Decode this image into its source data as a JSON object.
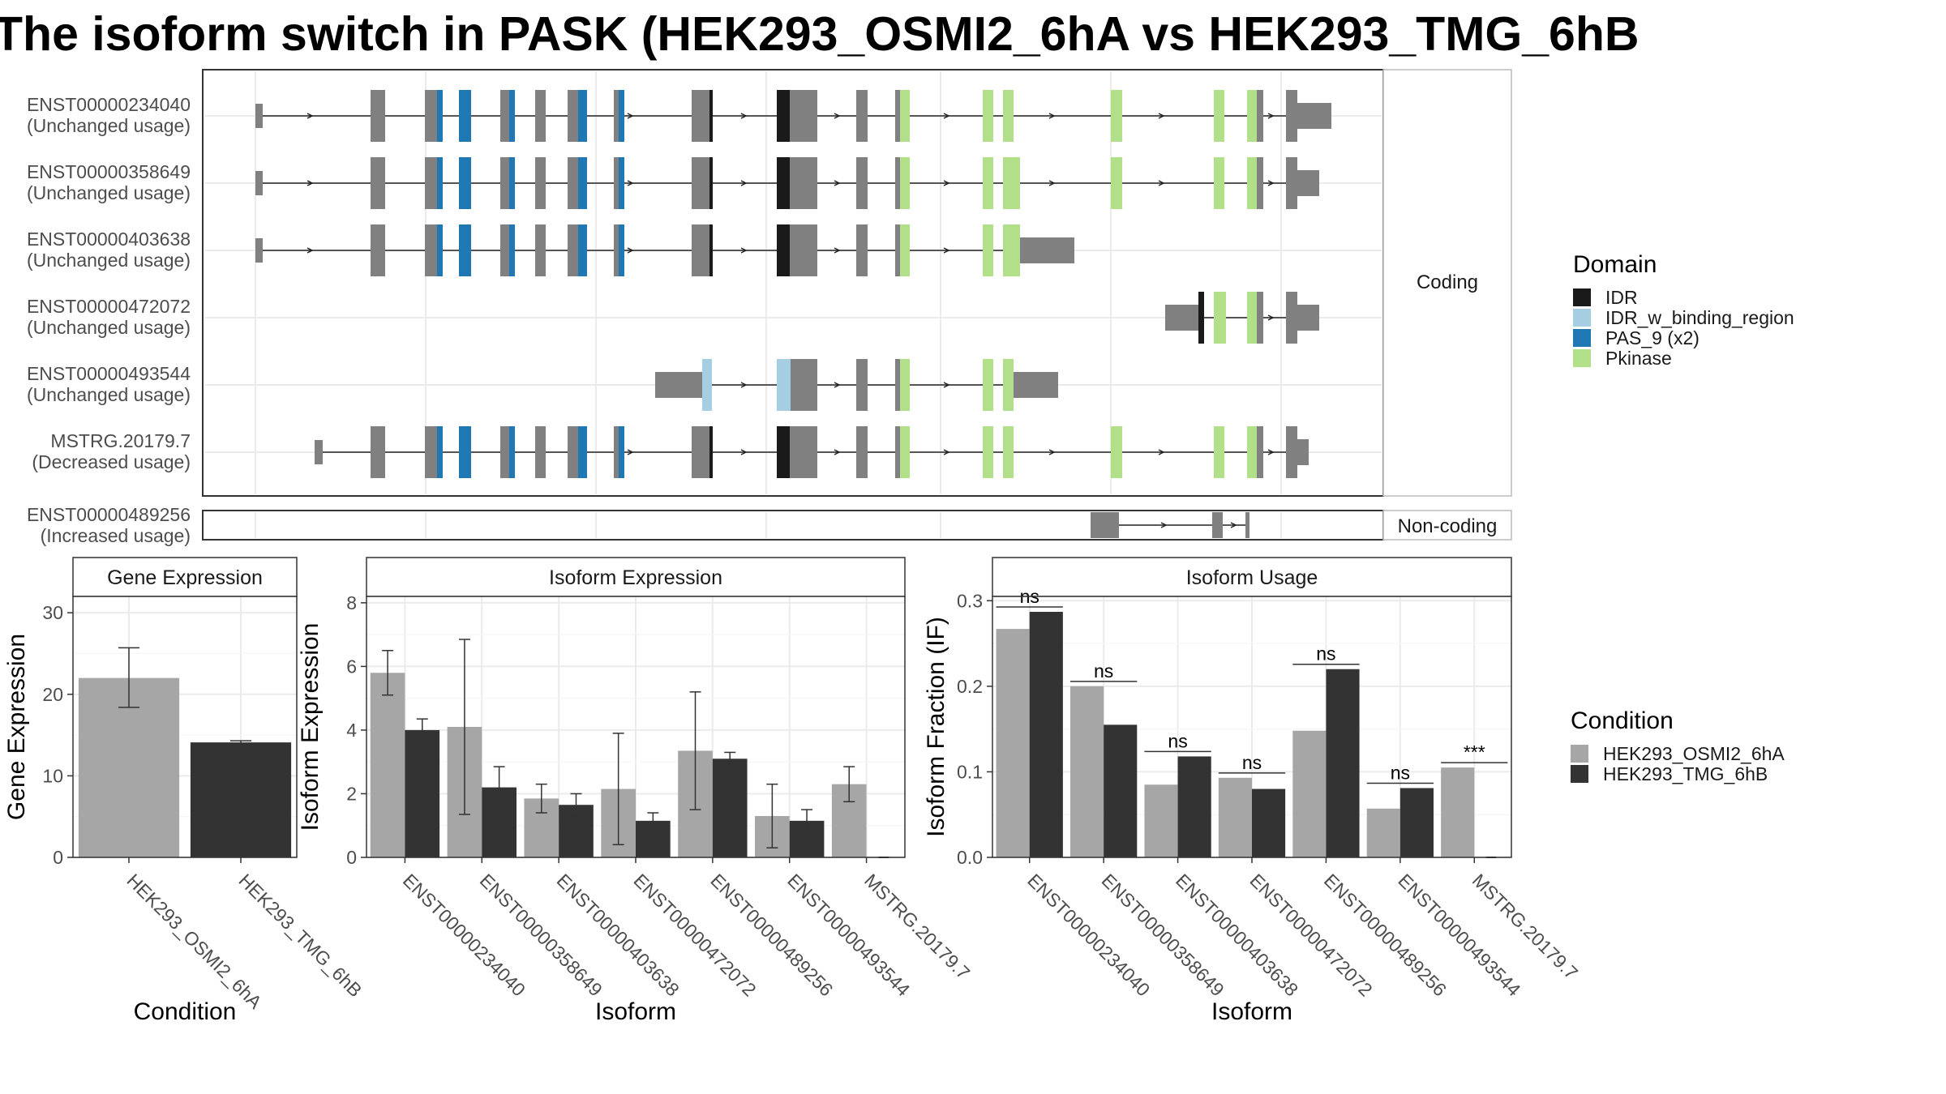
{
  "title": "The isoform switch in PASK (HEK293_OSMI2_6hA vs HEK293_TMG_6hB",
  "colors": {
    "exon": "#808080",
    "IDR": "#1a1a1a",
    "IDR_w_binding_region": "#a6cee3",
    "PAS_9": "#1f78b4",
    "Pkinase": "#b2df8a",
    "cond1": "#a6a6a6",
    "cond2": "#333333"
  },
  "transcripts": {
    "coding_strip": "Coding",
    "noncoding_strip": "Non-coding",
    "coding": [
      {
        "id": "ENST00000234040",
        "usage": "(Unchanged usage)"
      },
      {
        "id": "ENST00000358649",
        "usage": "(Unchanged usage)"
      },
      {
        "id": "ENST00000403638",
        "usage": "(Unchanged usage)"
      },
      {
        "id": "ENST00000472072",
        "usage": "(Unchanged usage)"
      },
      {
        "id": "ENST00000493544",
        "usage": "(Unchanged usage)"
      },
      {
        "id": "MSTRG.20179.7",
        "usage": "(Decreased usage)"
      }
    ],
    "noncoding": [
      {
        "id": "ENST00000489256",
        "usage": "(Increased usage)"
      }
    ]
  },
  "domain_legend": {
    "title": "Domain",
    "items": [
      {
        "label": "IDR",
        "color": "#1a1a1a"
      },
      {
        "label": "IDR_w_binding_region",
        "color": "#a6cee3"
      },
      {
        "label": "PAS_9 (x2)",
        "color": "#1f78b4"
      },
      {
        "label": "Pkinase",
        "color": "#b2df8a"
      }
    ]
  },
  "condition_legend": {
    "title": "Condition",
    "items": [
      {
        "label": "HEK293_OSMI2_6hA",
        "color": "#a6a6a6"
      },
      {
        "label": "HEK293_TMG_6hB",
        "color": "#333333"
      }
    ]
  },
  "chart_data": [
    {
      "type": "bar",
      "title": "Gene Expression",
      "xlabel": "Condition",
      "ylabel": "Gene Expression",
      "ylim": [
        0,
        32
      ],
      "yticks": [
        0,
        10,
        20,
        30
      ],
      "categories": [
        "HEK293_OSMI2_6hA",
        "HEK293_TMG_6hB"
      ],
      "values": [
        22.0,
        14.1
      ],
      "errors": [
        [
          18.4,
          25.7
        ],
        [
          13.9,
          14.3
        ]
      ]
    },
    {
      "type": "bar",
      "title": "Isoform Expression",
      "xlabel": "Isoform",
      "ylabel": "Isoform Expression",
      "ylim": [
        0,
        8.2
      ],
      "yticks": [
        0,
        2,
        4,
        6,
        8
      ],
      "categories": [
        "ENST00000234040",
        "ENST00000358649",
        "ENST00000403638",
        "ENST00000472072",
        "ENST00000489256",
        "ENST00000493544",
        "MSTRG.20179.7"
      ],
      "series": [
        {
          "name": "HEK293_OSMI2_6hA",
          "values": [
            5.8,
            4.1,
            1.85,
            2.15,
            3.35,
            1.3,
            2.3
          ],
          "errors": [
            [
              5.1,
              6.5
            ],
            [
              1.35,
              6.85
            ],
            [
              1.4,
              2.3
            ],
            [
              0.4,
              3.9
            ],
            [
              1.5,
              5.2
            ],
            [
              0.3,
              2.3
            ],
            [
              1.75,
              2.85
            ]
          ]
        },
        {
          "name": "HEK293_TMG_6hB",
          "values": [
            4.0,
            2.2,
            1.65,
            1.15,
            3.1,
            1.15,
            0.0
          ],
          "errors": [
            [
              3.65,
              4.35
            ],
            [
              1.55,
              2.85
            ],
            [
              1.3,
              2.0
            ],
            [
              0.9,
              1.4
            ],
            [
              2.9,
              3.3
            ],
            [
              0.8,
              1.5
            ],
            [
              0,
              0
            ]
          ]
        }
      ]
    },
    {
      "type": "bar",
      "title": "Isoform Usage",
      "xlabel": "Isoform",
      "ylabel": "Isoform Fraction (IF)",
      "ylim": [
        0,
        0.305
      ],
      "yticks": [
        0.0,
        0.1,
        0.2,
        0.3
      ],
      "categories": [
        "ENST00000234040",
        "ENST00000358649",
        "ENST00000403638",
        "ENST00000472072",
        "ENST00000489256",
        "ENST00000493544",
        "MSTRG.20179.7"
      ],
      "series": [
        {
          "name": "HEK293_OSMI2_6hA",
          "values": [
            0.267,
            0.2,
            0.085,
            0.093,
            0.148,
            0.057,
            0.105
          ]
        },
        {
          "name": "HEK293_TMG_6hB",
          "values": [
            0.287,
            0.155,
            0.118,
            0.08,
            0.22,
            0.081,
            0.0
          ]
        }
      ],
      "significance": [
        "ns",
        "ns",
        "ns",
        "ns",
        "ns",
        "ns",
        "***"
      ]
    }
  ]
}
